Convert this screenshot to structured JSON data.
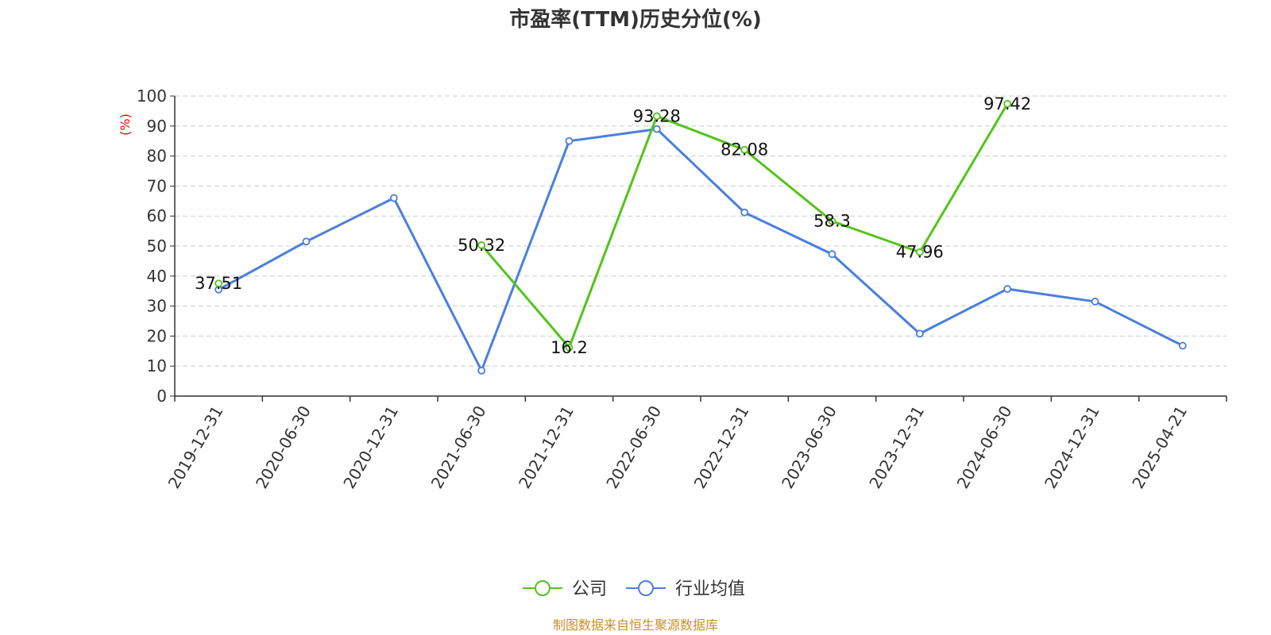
{
  "chart_data": {
    "type": "line",
    "title": "市盈率(TTM)历史分位(%)",
    "ylabel": "(%)",
    "ylim": [
      0,
      100
    ],
    "yticks": [
      0,
      10,
      20,
      30,
      40,
      50,
      60,
      70,
      80,
      90,
      100
    ],
    "grid": true,
    "legend_position": "bottom-center",
    "categories": [
      "2019-12-31",
      "2020-06-30",
      "2020-12-31",
      "2021-06-30",
      "2021-12-31",
      "2022-06-30",
      "2022-12-31",
      "2023-06-30",
      "2023-12-31",
      "2024-06-30",
      "2024-12-31",
      "2025-04-21"
    ],
    "series": [
      {
        "name": "公司",
        "color": "#52c41a",
        "values": [
          37.51,
          null,
          null,
          50.32,
          16.2,
          93.28,
          82.08,
          58.3,
          47.96,
          97.42,
          null,
          null
        ],
        "show_labels": true
      },
      {
        "name": "行业均值",
        "color": "#4a7fdc",
        "values": [
          35.5,
          51.5,
          66.0,
          8.5,
          85.0,
          89.0,
          61.2,
          47.3,
          20.8,
          35.7,
          31.5,
          16.8
        ],
        "show_labels": false
      }
    ]
  },
  "source_note": "制图数据来自恒生聚源数据库"
}
